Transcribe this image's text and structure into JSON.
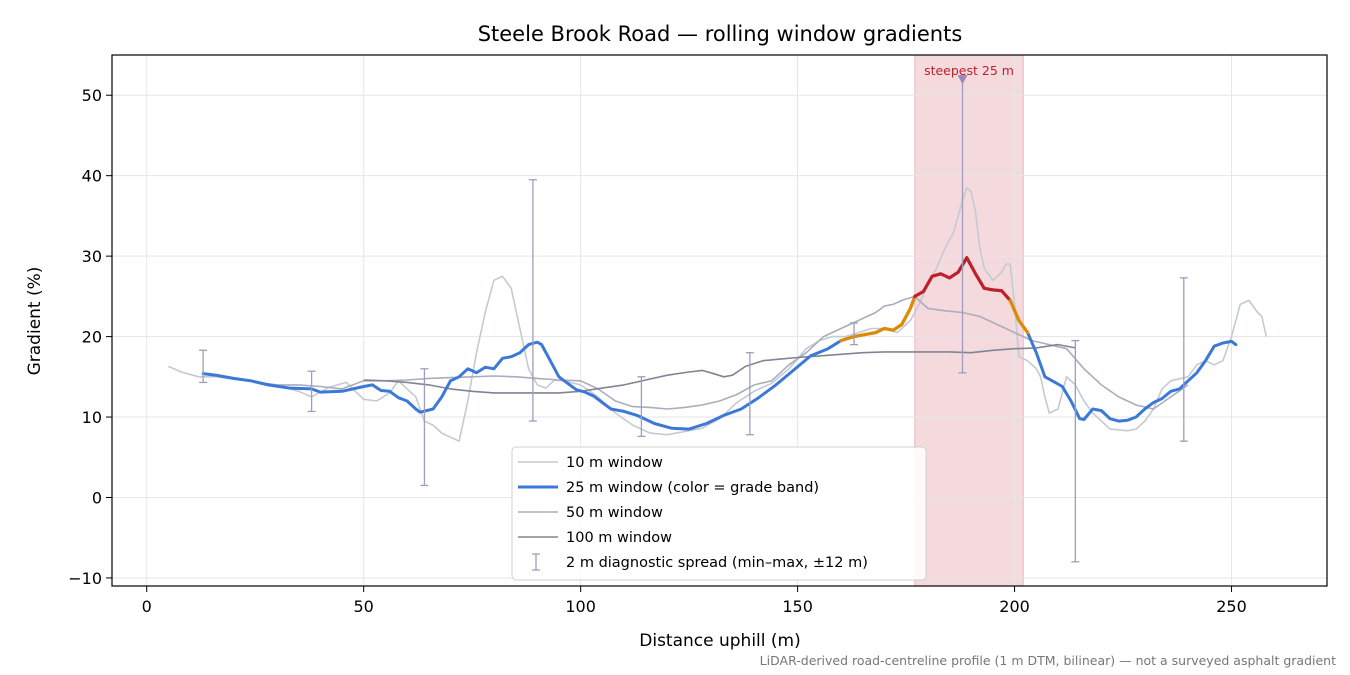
{
  "chart_data": {
    "type": "line",
    "title": "Steele Brook Road — rolling window gradients",
    "xlabel": "Distance uphill (m)",
    "ylabel": "Gradient (%)",
    "xlim": [
      -8,
      272
    ],
    "ylim": [
      -11,
      55
    ],
    "xticks": [
      0,
      50,
      100,
      150,
      200,
      250
    ],
    "yticks": [
      -10,
      0,
      10,
      20,
      30,
      40,
      50
    ],
    "grid": true,
    "legend_position": "bottom-center",
    "footnote": "LiDAR-derived road-centreline profile (1 m DTM, bilinear) — not a surveyed asphalt gradient",
    "highlight": {
      "x_start": 177,
      "x_end": 202,
      "label": "steepest 25 m",
      "marker_x": 188,
      "marker_y": 52,
      "color": "#f5dadd"
    },
    "grade_band_colors": {
      "low": "#3b78d8",
      "medium": "#e08a00",
      "steep": "#c0202a"
    },
    "series": [
      {
        "name": "10 m window",
        "color": "#c5c9d3",
        "points": [
          [
            5,
            16.3
          ],
          [
            8,
            15.6
          ],
          [
            12,
            15.0
          ],
          [
            16,
            15.0
          ],
          [
            20,
            14.7
          ],
          [
            25,
            14.4
          ],
          [
            30,
            14.0
          ],
          [
            35,
            13.2
          ],
          [
            38,
            12.5
          ],
          [
            42,
            13.7
          ],
          [
            46,
            14.3
          ],
          [
            50,
            12.2
          ],
          [
            53,
            12.0
          ],
          [
            56,
            13.0
          ],
          [
            58,
            14.5
          ],
          [
            60,
            13.5
          ],
          [
            62,
            12.5
          ],
          [
            64,
            9.5
          ],
          [
            66,
            9.0
          ],
          [
            68,
            8.0
          ],
          [
            70,
            7.5
          ],
          [
            72,
            7.0
          ],
          [
            74,
            12.0
          ],
          [
            76,
            18.0
          ],
          [
            78,
            23.0
          ],
          [
            80,
            27.0
          ],
          [
            82,
            27.5
          ],
          [
            84,
            26.0
          ],
          [
            86,
            21.0
          ],
          [
            88,
            16.0
          ],
          [
            90,
            14.0
          ],
          [
            92,
            13.6
          ],
          [
            94,
            14.6
          ],
          [
            96,
            14.5
          ],
          [
            100,
            14.0
          ],
          [
            104,
            12.5
          ],
          [
            108,
            10.5
          ],
          [
            112,
            9.0
          ],
          [
            116,
            8.0
          ],
          [
            120,
            7.8
          ],
          [
            124,
            8.2
          ],
          [
            128,
            8.6
          ],
          [
            132,
            9.8
          ],
          [
            136,
            11.8
          ],
          [
            140,
            13.2
          ],
          [
            144,
            14.2
          ],
          [
            148,
            16.0
          ],
          [
            152,
            18.5
          ],
          [
            155,
            19.5
          ],
          [
            158,
            20.0
          ],
          [
            161,
            20.0
          ],
          [
            164,
            20.5
          ],
          [
            167,
            21.0
          ],
          [
            170,
            21.0
          ],
          [
            173,
            20.5
          ],
          [
            176,
            22.0
          ],
          [
            178,
            24.0
          ],
          [
            180,
            26.5
          ],
          [
            182,
            28.5
          ],
          [
            184,
            31.0
          ],
          [
            186,
            33.0
          ],
          [
            187,
            35.0
          ],
          [
            188,
            37.0
          ],
          [
            189,
            38.5
          ],
          [
            190,
            38.0
          ],
          [
            191,
            35.5
          ],
          [
            192,
            31.0
          ],
          [
            193,
            28.5
          ],
          [
            195,
            27.0
          ],
          [
            197,
            28.0
          ],
          [
            198,
            29.0
          ],
          [
            199,
            29.0
          ],
          [
            200,
            24.0
          ],
          [
            201,
            17.5
          ],
          [
            203,
            17.0
          ],
          [
            205,
            16.0
          ],
          [
            206,
            15.0
          ],
          [
            207,
            12.5
          ],
          [
            208,
            10.5
          ],
          [
            210,
            11.0
          ],
          [
            212,
            15.0
          ],
          [
            214,
            14.0
          ],
          [
            216,
            12.0
          ],
          [
            218,
            10.5
          ],
          [
            220,
            9.5
          ],
          [
            222,
            8.5
          ],
          [
            226,
            8.3
          ],
          [
            228,
            8.5
          ],
          [
            230,
            9.5
          ],
          [
            232,
            11.0
          ],
          [
            234,
            13.5
          ],
          [
            236,
            14.5
          ],
          [
            240,
            15.0
          ],
          [
            242,
            16.5
          ],
          [
            244,
            17.0
          ],
          [
            246,
            16.5
          ],
          [
            248,
            17.0
          ],
          [
            250,
            20.0
          ],
          [
            252,
            24.0
          ],
          [
            254,
            24.5
          ],
          [
            256,
            23.0
          ],
          [
            257,
            22.5
          ],
          [
            258,
            20.0
          ]
        ]
      },
      {
        "name": "25 m window (color = grade band)",
        "color": "#3b78d8",
        "points": [
          [
            13,
            15.4
          ],
          [
            16,
            15.2
          ],
          [
            20,
            14.8
          ],
          [
            24,
            14.5
          ],
          [
            28,
            14.0
          ],
          [
            33,
            13.6
          ],
          [
            38,
            13.5
          ],
          [
            40,
            13.1
          ],
          [
            45,
            13.2
          ],
          [
            50,
            13.8
          ],
          [
            52,
            14.0
          ],
          [
            54,
            13.3
          ],
          [
            56,
            13.2
          ],
          [
            58,
            12.4
          ],
          [
            60,
            12.0
          ],
          [
            62,
            11.0
          ],
          [
            63,
            10.6
          ],
          [
            66,
            11.0
          ],
          [
            68,
            12.5
          ],
          [
            70,
            14.5
          ],
          [
            72,
            15.0
          ],
          [
            74,
            16.0
          ],
          [
            76,
            15.5
          ],
          [
            78,
            16.2
          ],
          [
            80,
            16.0
          ],
          [
            82,
            17.3
          ],
          [
            84,
            17.5
          ],
          [
            86,
            18.0
          ],
          [
            88,
            19.0
          ],
          [
            90,
            19.3
          ],
          [
            91,
            19.0
          ],
          [
            93,
            17.0
          ],
          [
            95,
            15.0
          ],
          [
            97,
            14.2
          ],
          [
            99,
            13.4
          ],
          [
            101,
            13.1
          ],
          [
            103,
            12.6
          ],
          [
            105,
            11.8
          ],
          [
            107,
            11.0
          ],
          [
            110,
            10.7
          ],
          [
            113,
            10.2
          ],
          [
            117,
            9.2
          ],
          [
            121,
            8.6
          ],
          [
            125,
            8.5
          ],
          [
            129,
            9.2
          ],
          [
            133,
            10.2
          ],
          [
            137,
            11.0
          ],
          [
            141,
            12.4
          ],
          [
            145,
            14.0
          ],
          [
            149,
            15.8
          ],
          [
            153,
            17.6
          ],
          [
            157,
            18.5
          ],
          [
            160,
            19.5
          ],
          [
            163,
            20.0
          ],
          [
            166,
            20.3
          ],
          [
            168,
            20.5
          ],
          [
            170,
            21.0
          ],
          [
            172,
            20.8
          ],
          [
            174,
            21.5
          ],
          [
            176,
            23.5
          ],
          [
            177,
            25.0
          ],
          [
            179,
            25.6
          ],
          [
            181,
            27.5
          ],
          [
            183,
            27.8
          ],
          [
            185,
            27.3
          ],
          [
            187,
            28.0
          ],
          [
            189,
            29.8
          ],
          [
            191,
            27.8
          ],
          [
            193,
            26.0
          ],
          [
            195,
            25.8
          ],
          [
            197,
            25.7
          ],
          [
            199,
            24.5
          ],
          [
            201,
            22.0
          ],
          [
            203,
            20.5
          ],
          [
            205,
            18.0
          ],
          [
            207,
            15.0
          ],
          [
            209,
            14.4
          ],
          [
            211,
            13.8
          ],
          [
            213,
            12.0
          ],
          [
            215,
            9.8
          ],
          [
            216,
            9.7
          ],
          [
            218,
            11.0
          ],
          [
            220,
            10.8
          ],
          [
            222,
            9.8
          ],
          [
            224,
            9.5
          ],
          [
            226,
            9.6
          ],
          [
            228,
            10.0
          ],
          [
            230,
            11.0
          ],
          [
            232,
            11.8
          ],
          [
            234,
            12.3
          ],
          [
            236,
            13.2
          ],
          [
            238,
            13.5
          ],
          [
            240,
            14.5
          ],
          [
            242,
            15.5
          ],
          [
            244,
            17.0
          ],
          [
            246,
            18.8
          ],
          [
            248,
            19.2
          ],
          [
            250,
            19.4
          ],
          [
            251,
            19.0
          ]
        ],
        "band_segments": [
          {
            "band": "medium",
            "x_start": 160,
            "x_end": 177
          },
          {
            "band": "steep",
            "x_start": 177,
            "x_end": 199
          },
          {
            "band": "medium",
            "x_start": 199,
            "x_end": 203
          }
        ]
      },
      {
        "name": "50 m window",
        "color": "#a9adbc",
        "points": [
          [
            25,
            14.3
          ],
          [
            30,
            14.0
          ],
          [
            35,
            14.0
          ],
          [
            40,
            13.8
          ],
          [
            45,
            13.5
          ],
          [
            50,
            14.5
          ],
          [
            55,
            14.5
          ],
          [
            60,
            14.6
          ],
          [
            65,
            14.8
          ],
          [
            70,
            14.9
          ],
          [
            75,
            15.0
          ],
          [
            80,
            15.1
          ],
          [
            85,
            15.0
          ],
          [
            90,
            14.8
          ],
          [
            95,
            14.6
          ],
          [
            100,
            14.5
          ],
          [
            104,
            13.5
          ],
          [
            108,
            12.0
          ],
          [
            112,
            11.3
          ],
          [
            116,
            11.2
          ],
          [
            120,
            11.0
          ],
          [
            124,
            11.2
          ],
          [
            128,
            11.5
          ],
          [
            132,
            12.0
          ],
          [
            136,
            12.8
          ],
          [
            140,
            14.0
          ],
          [
            144,
            14.5
          ],
          [
            148,
            16.5
          ],
          [
            152,
            18.0
          ],
          [
            156,
            20.0
          ],
          [
            160,
            21.0
          ],
          [
            164,
            22.0
          ],
          [
            168,
            23.0
          ],
          [
            170,
            23.8
          ],
          [
            172,
            24.0
          ],
          [
            174,
            24.5
          ],
          [
            177,
            25.0
          ],
          [
            180,
            23.5
          ],
          [
            184,
            23.2
          ],
          [
            188,
            23.0
          ],
          [
            192,
            22.5
          ],
          [
            196,
            21.5
          ],
          [
            200,
            20.5
          ],
          [
            204,
            19.5
          ],
          [
            208,
            19.0
          ],
          [
            212,
            18.5
          ],
          [
            216,
            16.0
          ],
          [
            220,
            14.0
          ],
          [
            224,
            12.5
          ],
          [
            228,
            11.5
          ],
          [
            232,
            11.0
          ],
          [
            236,
            12.5
          ],
          [
            240,
            14.0
          ]
        ]
      },
      {
        "name": "100 m window",
        "color": "#808593",
        "points": [
          [
            50,
            14.6
          ],
          [
            55,
            14.5
          ],
          [
            60,
            14.3
          ],
          [
            65,
            14.0
          ],
          [
            70,
            13.5
          ],
          [
            75,
            13.2
          ],
          [
            80,
            13.0
          ],
          [
            85,
            13.0
          ],
          [
            90,
            13.0
          ],
          [
            95,
            13.0
          ],
          [
            100,
            13.2
          ],
          [
            105,
            13.6
          ],
          [
            110,
            14.0
          ],
          [
            115,
            14.6
          ],
          [
            120,
            15.2
          ],
          [
            125,
            15.6
          ],
          [
            128,
            15.8
          ],
          [
            130,
            15.5
          ],
          [
            133,
            15.0
          ],
          [
            135,
            15.2
          ],
          [
            138,
            16.3
          ],
          [
            142,
            17.0
          ],
          [
            146,
            17.2
          ],
          [
            150,
            17.4
          ],
          [
            155,
            17.6
          ],
          [
            160,
            17.8
          ],
          [
            165,
            18.0
          ],
          [
            170,
            18.1
          ],
          [
            175,
            18.1
          ],
          [
            180,
            18.1
          ],
          [
            185,
            18.1
          ],
          [
            190,
            18.0
          ],
          [
            195,
            18.3
          ],
          [
            200,
            18.5
          ],
          [
            205,
            18.6
          ],
          [
            210,
            19.0
          ],
          [
            214,
            18.6
          ]
        ]
      }
    ],
    "spread_bars": {
      "name": "2 m diagnostic spread (min–max, ±12 m)",
      "color": "#a09cbc",
      "bars": [
        [
          13,
          14.3,
          18.3
        ],
        [
          38,
          10.7,
          15.7
        ],
        [
          64,
          1.5,
          16.0
        ],
        [
          89,
          9.5,
          39.5
        ],
        [
          114,
          7.6,
          15.0
        ],
        [
          139,
          7.8,
          18.0
        ],
        [
          163,
          19.0,
          21.7
        ],
        [
          188,
          15.5,
          52.3
        ],
        [
          214,
          -8.0,
          19.5
        ],
        [
          239,
          7.0,
          27.3
        ]
      ]
    }
  }
}
